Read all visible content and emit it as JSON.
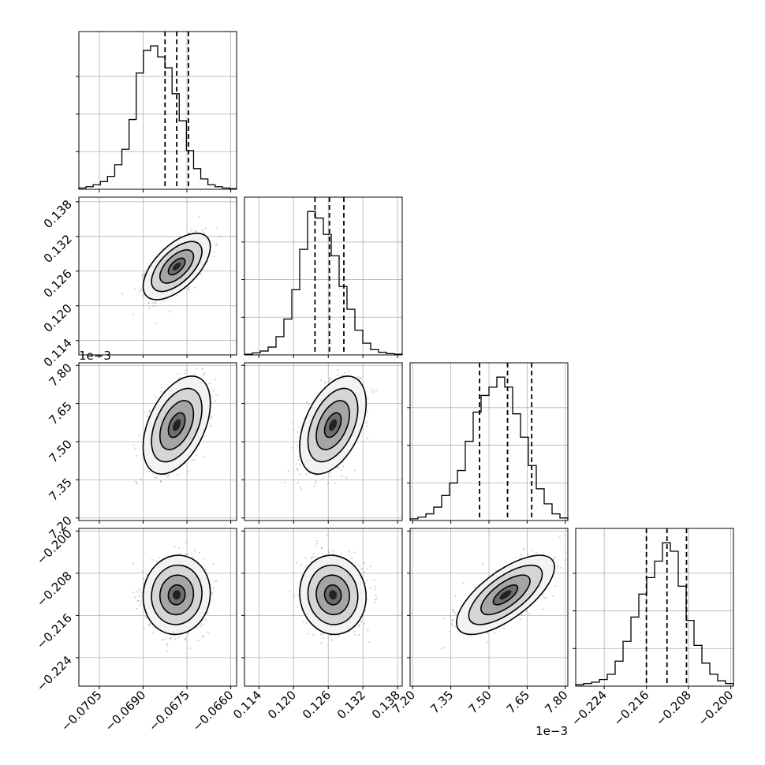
{
  "chart_data": {
    "type": "corner",
    "grid": true,
    "n_params": 4,
    "params": [
      {
        "range": [
          -0.0712,
          -0.0658
        ],
        "ticks": [
          -0.0705,
          -0.069,
          -0.0675,
          -0.066
        ],
        "tick_labels": [
          "−0.0705",
          "−0.0690",
          "−0.0675",
          "−0.0660"
        ],
        "offset_label": ""
      },
      {
        "range": [
          0.1115,
          0.1388
        ],
        "ticks": [
          0.114,
          0.12,
          0.126,
          0.132,
          0.138
        ],
        "tick_labels": [
          "0.114",
          "0.120",
          "0.126",
          "0.132",
          "0.138"
        ],
        "offset_label": ""
      },
      {
        "range": [
          7.19,
          7.81
        ],
        "ticks": [
          7.2,
          7.35,
          7.5,
          7.65,
          7.8
        ],
        "tick_labels": [
          "7.20",
          "7.35",
          "7.50",
          "7.65",
          "7.80"
        ],
        "offset_label": "1e−3"
      },
      {
        "range": [
          -0.2294,
          -0.1995
        ],
        "ticks": [
          -0.224,
          -0.216,
          -0.208,
          -0.2
        ],
        "tick_labels": [
          "−0.224",
          "−0.216",
          "−0.208",
          "−0.200"
        ],
        "offset_label": ""
      }
    ],
    "histograms": [
      {
        "param": 0,
        "bins": [
          -0.0712,
          -0.0658
        ],
        "counts": [
          2,
          4,
          7,
          12,
          20,
          38,
          62,
          108,
          180,
          215,
          222,
          205,
          188,
          148,
          106,
          60,
          32,
          16,
          7,
          4,
          2,
          1
        ],
        "quantiles": [
          -0.06825,
          -0.06785,
          -0.06745
        ]
      },
      {
        "param": 1,
        "bins": [
          0.1115,
          0.1388
        ],
        "counts": [
          1,
          3,
          6,
          12,
          28,
          55,
          100,
          162,
          220,
          210,
          185,
          152,
          105,
          70,
          38,
          18,
          8,
          4,
          2,
          1
        ],
        "quantiles": [
          0.1237,
          0.1262,
          0.1287
        ]
      },
      {
        "param": 2,
        "bins": [
          7.19,
          7.81
        ],
        "counts": [
          2,
          4,
          8,
          16,
          30,
          45,
          60,
          95,
          130,
          150,
          160,
          172,
          160,
          128,
          100,
          66,
          38,
          20,
          8,
          3
        ],
        "quantiles": [
          7.463,
          7.573,
          7.668
        ]
      },
      {
        "param": 3,
        "bins": [
          -0.2294,
          -0.1995
        ],
        "counts": [
          2,
          4,
          6,
          10,
          18,
          38,
          68,
          105,
          140,
          165,
          190,
          218,
          205,
          152,
          100,
          62,
          35,
          18,
          8,
          4
        ],
        "quantiles": [
          -0.216,
          -0.2121,
          -0.2084
        ]
      }
    ],
    "density_2d": [
      {
        "x_param": 0,
        "y_param": 1,
        "mean": [
          -0.06785,
          0.1268
        ],
        "std": [
          0.00046,
          0.0023
        ],
        "corr": 0.6
      },
      {
        "x_param": 0,
        "y_param": 2,
        "mean": [
          -0.06785,
          7.565
        ],
        "std": [
          0.00046,
          0.077
        ],
        "corr": 0.45
      },
      {
        "x_param": 1,
        "y_param": 2,
        "mean": [
          0.1268,
          7.565
        ],
        "std": [
          0.0023,
          0.077
        ],
        "corr": 0.45
      },
      {
        "x_param": 0,
        "y_param": 3,
        "mean": [
          -0.06785,
          -0.2121
        ],
        "std": [
          0.00046,
          0.003
        ],
        "corr": 0.05
      },
      {
        "x_param": 1,
        "y_param": 3,
        "mean": [
          0.1268,
          -0.2121
        ],
        "std": [
          0.0023,
          0.003
        ],
        "corr": -0.05
      },
      {
        "x_param": 2,
        "y_param": 3,
        "mean": [
          7.565,
          -0.2121
        ],
        "std": [
          0.077,
          0.003
        ],
        "corr": 0.7
      }
    ],
    "contour_levels_sigma": [
      0.5,
      1.0,
      1.5,
      2.0
    ]
  }
}
